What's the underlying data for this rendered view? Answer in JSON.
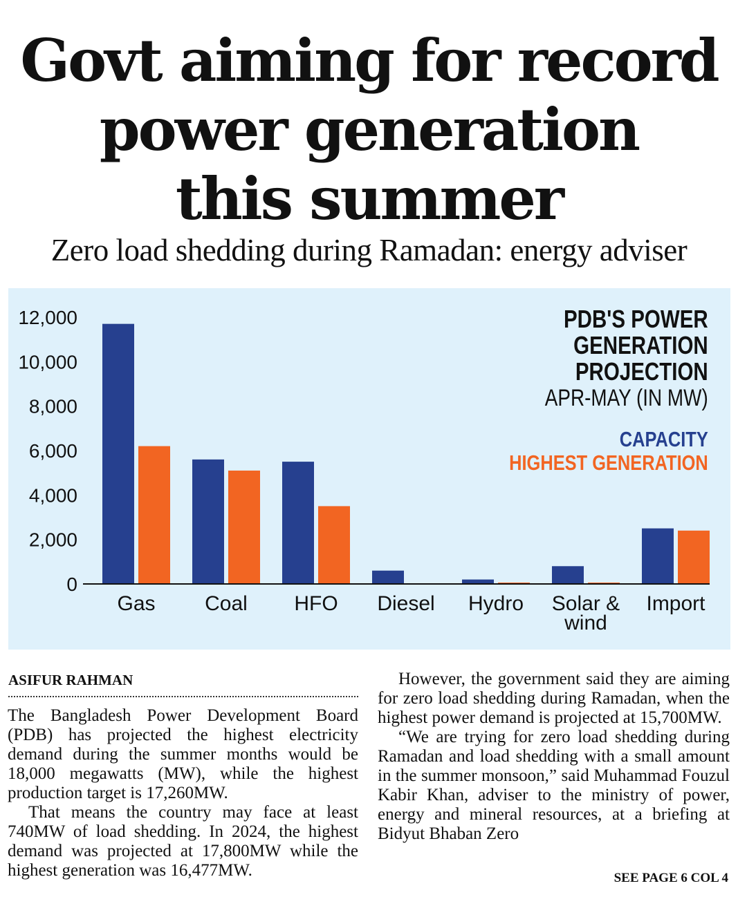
{
  "headline": {
    "line1": "Govt aiming for record",
    "line2": "power generation",
    "line3": "this summer"
  },
  "subhead": "Zero load shedding during Ramadan: energy adviser",
  "chart_data": {
    "type": "bar",
    "title": [
      "PDB'S POWER",
      "GENERATION",
      "PROJECTION"
    ],
    "subtitle": "APR-MAY (IN MW)",
    "categories": [
      "Gas",
      "Coal",
      "HFO",
      "Diesel",
      "Hydro",
      "Solar & wind",
      "Import"
    ],
    "category_lines": [
      [
        "Gas"
      ],
      [
        "Coal"
      ],
      [
        "HFO"
      ],
      [
        "Diesel"
      ],
      [
        "Hydro"
      ],
      [
        "Solar &",
        "wind"
      ],
      [
        "Import"
      ]
    ],
    "series": [
      {
        "name": "CAPACITY",
        "color": "#26408f",
        "values": [
          11700,
          5600,
          5500,
          600,
          200,
          800,
          2500
        ]
      },
      {
        "name": "HIGHEST GENERATION",
        "color": "#f26522",
        "values": [
          6200,
          5100,
          3500,
          0,
          30,
          50,
          2400
        ]
      }
    ],
    "yticks": [
      "0",
      "2,000",
      "4,000",
      "6,000",
      "8,000",
      "10,000",
      "12,000"
    ],
    "ytick_values": [
      0,
      2000,
      4000,
      6000,
      8000,
      10000,
      12000
    ],
    "ylim": [
      0,
      12000
    ],
    "grid": true,
    "legend": "top-right"
  },
  "article": {
    "byline": "ASIFUR RAHMAN",
    "col1": [
      "The Bangladesh Power Development Board (PDB) has projected the highest electricity demand during the summer months would be 18,000 megawatts (MW), while the highest production target is 17,260MW.",
      "That means the country may face at least 740MW of load shedding. In 2024, the highest demand was projected at 17,800MW while the highest generation was 16,477MW."
    ],
    "col2": [
      "However, the government said they are aiming for zero load shedding during Ramadan, when the highest power demand is projected at 15,700MW.",
      "“We are trying for zero load shedding during Ramadan and load shedding with a small amount in the summer monsoon,” said Muhammad Fouzul Kabir Khan, adviser to the ministry of power, energy and mineral resources, at a briefing at Bidyut Bhaban Zero"
    ],
    "continued": "SEE PAGE 6 COL 4"
  }
}
